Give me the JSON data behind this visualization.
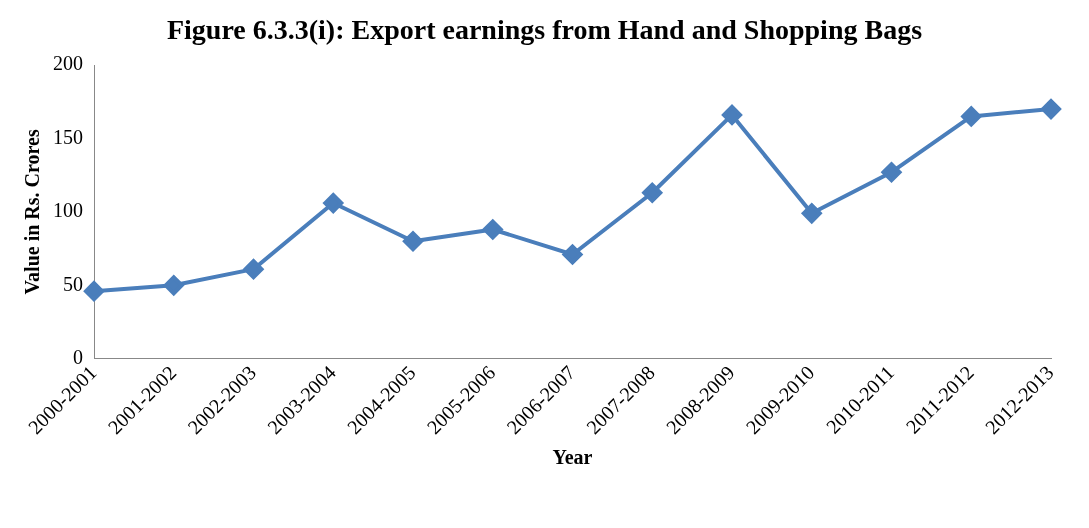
{
  "chart_data": {
    "type": "line",
    "title": "Figure 6.3.3(i): Export earnings from Hand and Shopping Bags",
    "xlabel": "Year",
    "ylabel": "Value in Rs. Crores",
    "categories": [
      "2000-2001",
      "2001-2002",
      "2002-2003",
      "2003-2004",
      "2004-2005",
      "2005-2006",
      "2006-2007",
      "2007-2008",
      "2008-2009",
      "2009-2010",
      "2010-2011",
      "2011-2012",
      "2012-2013"
    ],
    "series": [
      {
        "color": "#4a7ebb",
        "values": [
          46,
          50,
          61,
          106,
          80,
          88,
          71,
          113,
          166,
          99,
          127,
          165,
          170
        ]
      }
    ],
    "ylim": [
      0,
      200
    ],
    "yticks": [
      0,
      50,
      100,
      150,
      200
    ],
    "grid": false,
    "legend": false,
    "marker": "diamond",
    "line_style": "solid"
  }
}
